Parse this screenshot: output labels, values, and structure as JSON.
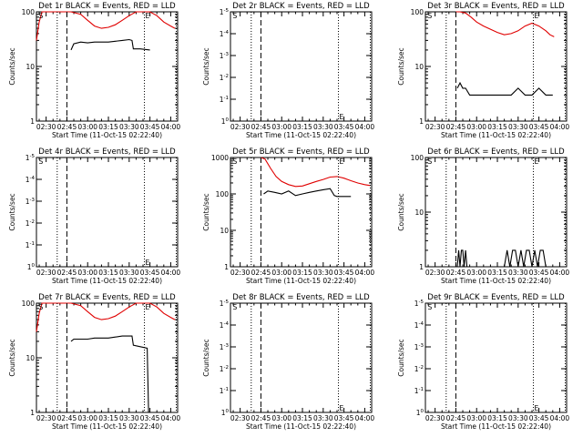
{
  "colors": {
    "events": "#000000",
    "lld": "#e00000",
    "axis": "#000000"
  },
  "chart_data": [
    {
      "type": "line",
      "title": "Det 1r BLACK = Events, RED = LLD",
      "xlabel": "Start Time (11-Oct-15 02:22:40)",
      "ylabel": "Counts/sec",
      "yscale": "log",
      "ylim": [
        1,
        100
      ],
      "yticks": [
        {
          "v": 1,
          "t": "1"
        },
        {
          "v": 10,
          "t": "10"
        },
        {
          "v": 100,
          "t": "100"
        }
      ],
      "xlim": [
        "02:23",
        "04:05"
      ],
      "xticks": [
        "02:30",
        "02:45",
        "03:00",
        "03:15",
        "03:30",
        "03:45",
        "04:00"
      ],
      "markers": [
        {
          "x": "02:24",
          "text": "S",
          "line": "none"
        },
        {
          "x": "02:38",
          "text": "",
          "line": "dotted"
        },
        {
          "x": "02:45",
          "text": "",
          "line": "dashed"
        },
        {
          "x": "03:41",
          "text": "E",
          "line": "dotted"
        },
        {
          "x": "04:04",
          "text": "",
          "line": "dotted"
        }
      ],
      "series": [
        {
          "name": "LLD",
          "color": "red",
          "x": [
            "02:23",
            "02:25",
            "02:27",
            "02:30",
            "02:33",
            "02:40",
            "02:48",
            "02:55",
            "03:00",
            "03:05",
            "03:10",
            "03:15",
            "03:20",
            "03:25",
            "03:30",
            "03:35",
            "03:40",
            "03:45",
            "03:50",
            "03:55",
            "04:00",
            "04:03"
          ],
          "y": [
            30,
            65,
            100,
            100,
            100,
            100,
            100,
            90,
            70,
            55,
            50,
            52,
            58,
            70,
            85,
            100,
            110,
            100,
            85,
            65,
            55,
            50
          ]
        },
        {
          "name": "Events",
          "color": "black",
          "x": [
            "02:48",
            "02:50",
            "02:55",
            "03:00",
            "03:05",
            "03:10",
            "03:15",
            "03:20",
            "03:25",
            "03:30",
            "03:32",
            "03:33",
            "03:38",
            "03:45"
          ],
          "y": [
            20,
            26,
            28,
            27,
            28,
            28,
            28,
            29,
            30,
            31,
            30,
            21,
            21,
            20
          ]
        }
      ]
    },
    {
      "type": "line",
      "title": "Det 2r BLACK = Events, RED = LLD",
      "xlabel": "Start Time (11-Oct-15 02:22:40)",
      "ylabel": "Counts/sec",
      "yscale": "log",
      "ylim": [
        1,
        1.00005
      ],
      "yticks": [
        {
          "v": 0,
          "t": "1"
        },
        {
          "v": 0.2,
          "t": "1"
        },
        {
          "v": 0.4,
          "t": "1"
        },
        {
          "v": 0.6,
          "t": "1"
        },
        {
          "v": 0.8,
          "t": "1"
        },
        {
          "v": 1,
          "t": "1"
        }
      ],
      "ytick_sup": [
        "0",
        "-1",
        "-2",
        "-3",
        "-4",
        "-5"
      ],
      "xlim": [
        "02:23",
        "04:05"
      ],
      "xticks": [
        "02:30",
        "02:45",
        "03:00",
        "03:15",
        "03:30",
        "03:45",
        "04:00"
      ],
      "markers": [
        {
          "x": "02:24",
          "text": "S",
          "line": "none"
        },
        {
          "x": "02:38",
          "text": "",
          "line": "dotted"
        },
        {
          "x": "02:45",
          "text": "",
          "line": "dashed"
        },
        {
          "x": "03:41",
          "text": "E",
          "line": "dotted"
        },
        {
          "x": "04:04",
          "text": "",
          "line": "dotted"
        }
      ],
      "series": []
    },
    {
      "type": "line",
      "title": "Det 3r BLACK = Events, RED = LLD",
      "xlabel": "Start Time (11-Oct-15 02:22:40)",
      "ylabel": "Counts/sec",
      "yscale": "log",
      "ylim": [
        1,
        100
      ],
      "yticks": [
        {
          "v": 1,
          "t": "1"
        },
        {
          "v": 10,
          "t": "10"
        },
        {
          "v": 100,
          "t": "100"
        }
      ],
      "xlim": [
        "02:23",
        "04:05"
      ],
      "xticks": [
        "02:30",
        "02:45",
        "03:00",
        "03:15",
        "03:30",
        "03:45",
        "04:00"
      ],
      "markers": [
        {
          "x": "02:24",
          "text": "S",
          "line": "none"
        },
        {
          "x": "02:38",
          "text": "",
          "line": "dotted"
        },
        {
          "x": "02:45",
          "text": "",
          "line": "dashed"
        },
        {
          "x": "03:41",
          "text": "E",
          "line": "dotted"
        },
        {
          "x": "04:04",
          "text": "",
          "line": "dotted"
        }
      ],
      "series": [
        {
          "name": "LLD",
          "color": "red",
          "x": [
            "02:45",
            "02:48",
            "02:52",
            "02:56",
            "03:00",
            "03:05",
            "03:10",
            "03:15",
            "03:20",
            "03:25",
            "03:30",
            "03:35",
            "03:40",
            "03:45",
            "03:50",
            "03:53",
            "03:56"
          ],
          "y": [
            100,
            100,
            95,
            80,
            65,
            55,
            48,
            42,
            38,
            40,
            45,
            55,
            62,
            55,
            45,
            38,
            35
          ]
        },
        {
          "name": "Events",
          "color": "black",
          "x": [
            "02:46",
            "02:48",
            "02:50",
            "02:52",
            "02:55",
            "03:00",
            "03:05",
            "03:10",
            "03:15",
            "03:20",
            "03:25",
            "03:30",
            "03:35",
            "03:40",
            "03:45",
            "03:50",
            "03:55"
          ],
          "y": [
            4,
            5,
            4,
            4,
            3,
            3,
            3,
            3,
            3,
            3,
            3,
            4,
            3,
            3,
            4,
            3,
            3
          ]
        }
      ]
    },
    {
      "type": "line",
      "title": "Det 4r BLACK = Events, RED = LLD",
      "xlabel": "Start Time (11-Oct-15 02:22:40)",
      "ylabel": "Counts/sec",
      "yscale": "log",
      "ylim": [
        1,
        1.00005
      ],
      "yticks": [
        {
          "v": 0,
          "t": "1"
        },
        {
          "v": 0.2,
          "t": "1"
        },
        {
          "v": 0.4,
          "t": "1"
        },
        {
          "v": 0.6,
          "t": "1"
        },
        {
          "v": 0.8,
          "t": "1"
        },
        {
          "v": 1,
          "t": "1"
        }
      ],
      "ytick_sup": [
        "0",
        "-1",
        "-2",
        "-3",
        "-4",
        "-5"
      ],
      "xlim": [
        "02:23",
        "04:05"
      ],
      "xticks": [
        "02:30",
        "02:45",
        "03:00",
        "03:15",
        "03:30",
        "03:45",
        "04:00"
      ],
      "markers": [
        {
          "x": "02:24",
          "text": "S",
          "line": "none"
        },
        {
          "x": "02:38",
          "text": "",
          "line": "dotted"
        },
        {
          "x": "02:45",
          "text": "",
          "line": "dashed"
        },
        {
          "x": "03:41",
          "text": "E",
          "line": "dotted"
        },
        {
          "x": "04:04",
          "text": "",
          "line": "dotted"
        }
      ],
      "series": []
    },
    {
      "type": "line",
      "title": "Det 5r BLACK = Events, RED = LLD",
      "xlabel": "Start Time (11-Oct-15 02:22:40)",
      "ylabel": "Counts/sec",
      "yscale": "log",
      "ylim": [
        1,
        1000
      ],
      "yticks": [
        {
          "v": 1,
          "t": "1"
        },
        {
          "v": 10,
          "t": "10"
        },
        {
          "v": 100,
          "t": "100"
        },
        {
          "v": 1000,
          "t": "1000"
        }
      ],
      "xlim": [
        "02:23",
        "04:05"
      ],
      "xticks": [
        "02:30",
        "02:45",
        "03:00",
        "03:15",
        "03:30",
        "03:45",
        "04:00"
      ],
      "markers": [
        {
          "x": "02:24",
          "text": "S",
          "line": "none"
        },
        {
          "x": "02:38",
          "text": "",
          "line": "dotted"
        },
        {
          "x": "02:45",
          "text": "",
          "line": "dashed"
        },
        {
          "x": "03:41",
          "text": "E",
          "line": "dotted"
        },
        {
          "x": "04:04",
          "text": "",
          "line": "dotted"
        }
      ],
      "series": [
        {
          "name": "LLD",
          "color": "red",
          "x": [
            "02:45",
            "02:48",
            "02:52",
            "02:56",
            "03:00",
            "03:05",
            "03:10",
            "03:15",
            "03:20",
            "03:25",
            "03:30",
            "03:35",
            "03:40",
            "03:45",
            "03:50",
            "03:55",
            "04:00",
            "04:04"
          ],
          "y": [
            1000,
            900,
            500,
            300,
            220,
            180,
            160,
            165,
            190,
            220,
            250,
            290,
            300,
            270,
            230,
            200,
            180,
            170
          ]
        },
        {
          "name": "Events",
          "color": "black",
          "x": [
            "02:47",
            "02:50",
            "02:55",
            "03:00",
            "03:05",
            "03:10",
            "03:15",
            "03:20",
            "03:25",
            "03:30",
            "03:35",
            "03:38",
            "03:40",
            "03:45",
            "03:50"
          ],
          "y": [
            100,
            120,
            110,
            100,
            120,
            90,
            100,
            110,
            120,
            130,
            140,
            90,
            85,
            85,
            85
          ]
        }
      ]
    },
    {
      "type": "line",
      "title": "Det 6r BLACK = Events, RED = LLD",
      "xlabel": "Start Time (11-Oct-15 02:22:40)",
      "ylabel": "Counts/sec",
      "yscale": "log",
      "ylim": [
        1,
        100
      ],
      "yticks": [
        {
          "v": 1,
          "t": "1"
        },
        {
          "v": 10,
          "t": "10"
        },
        {
          "v": 100,
          "t": "100"
        }
      ],
      "xlim": [
        "02:23",
        "04:05"
      ],
      "xticks": [
        "02:30",
        "02:45",
        "03:00",
        "03:15",
        "03:30",
        "03:45",
        "04:00"
      ],
      "markers": [
        {
          "x": "02:24",
          "text": "S",
          "line": "none"
        },
        {
          "x": "02:38",
          "text": "",
          "line": "dotted"
        },
        {
          "x": "02:45",
          "text": "",
          "line": "dashed"
        },
        {
          "x": "03:41",
          "text": "E",
          "line": "dotted"
        },
        {
          "x": "04:04",
          "text": "",
          "line": "dotted"
        }
      ],
      "series": [
        {
          "name": "Events",
          "color": "black",
          "x": [
            "02:46",
            "02:47",
            "02:48",
            "02:49",
            "02:50",
            "02:51",
            "02:52",
            "02:53",
            "03:20",
            "03:22",
            "03:24",
            "03:26",
            "03:28",
            "03:30",
            "03:32",
            "03:34",
            "03:36",
            "03:38",
            "03:40",
            "03:42",
            "03:44",
            "03:46",
            "03:48",
            "03:50"
          ],
          "y": [
            1,
            2,
            1,
            2,
            2,
            1,
            2,
            1,
            1,
            2,
            1,
            2,
            2,
            1,
            2,
            1,
            2,
            2,
            1,
            2,
            1,
            2,
            2,
            1
          ]
        }
      ]
    },
    {
      "type": "line",
      "title": "Det 7r BLACK = Events, RED = LLD",
      "xlabel": "Start Time (11-Oct-15 02:22:40)",
      "ylabel": "Counts/sec",
      "yscale": "log",
      "ylim": [
        1,
        100
      ],
      "yticks": [
        {
          "v": 1,
          "t": "1"
        },
        {
          "v": 10,
          "t": "10"
        },
        {
          "v": 100,
          "t": "100"
        }
      ],
      "xlim": [
        "02:23",
        "04:05"
      ],
      "xticks": [
        "02:30",
        "02:45",
        "03:00",
        "03:15",
        "03:30",
        "03:45",
        "04:00"
      ],
      "markers": [
        {
          "x": "02:24",
          "text": "S",
          "line": "none"
        },
        {
          "x": "02:38",
          "text": "",
          "line": "dotted"
        },
        {
          "x": "02:45",
          "text": "",
          "line": "dashed"
        },
        {
          "x": "03:41",
          "text": "E",
          "line": "dotted"
        },
        {
          "x": "04:04",
          "text": "",
          "line": "dotted"
        }
      ],
      "series": [
        {
          "name": "LLD",
          "color": "red",
          "x": [
            "02:23",
            "02:25",
            "02:27",
            "02:30",
            "02:33",
            "02:40",
            "02:48",
            "02:55",
            "03:00",
            "03:05",
            "03:10",
            "03:15",
            "03:20",
            "03:25",
            "03:30",
            "03:35",
            "03:40",
            "03:45",
            "03:50",
            "03:55",
            "04:00",
            "04:03"
          ],
          "y": [
            30,
            65,
            100,
            100,
            100,
            100,
            100,
            90,
            70,
            55,
            50,
            52,
            58,
            70,
            85,
            100,
            110,
            100,
            85,
            65,
            55,
            50
          ]
        },
        {
          "name": "Events",
          "color": "black",
          "x": [
            "02:48",
            "02:50",
            "02:55",
            "03:00",
            "03:05",
            "03:10",
            "03:15",
            "03:20",
            "03:25",
            "03:30",
            "03:32",
            "03:33",
            "03:38",
            "03:43",
            "03:44"
          ],
          "y": [
            20,
            22,
            22,
            22,
            23,
            23,
            23,
            24,
            25,
            25,
            25,
            17,
            16,
            15,
            1
          ]
        }
      ]
    },
    {
      "type": "line",
      "title": "Det 8r BLACK = Events, RED = LLD",
      "xlabel": "Start Time (11-Oct-15 02:22:40)",
      "ylabel": "Counts/sec",
      "yscale": "log",
      "ylim": [
        1,
        1.00005
      ],
      "yticks": [
        {
          "v": 0,
          "t": "1"
        },
        {
          "v": 0.2,
          "t": "1"
        },
        {
          "v": 0.4,
          "t": "1"
        },
        {
          "v": 0.6,
          "t": "1"
        },
        {
          "v": 0.8,
          "t": "1"
        },
        {
          "v": 1,
          "t": "1"
        }
      ],
      "ytick_sup": [
        "0",
        "-1",
        "-2",
        "-3",
        "-4",
        "-5"
      ],
      "xlim": [
        "02:23",
        "04:05"
      ],
      "xticks": [
        "02:30",
        "02:45",
        "03:00",
        "03:15",
        "03:30",
        "03:45",
        "04:00"
      ],
      "markers": [
        {
          "x": "02:24",
          "text": "S",
          "line": "none"
        },
        {
          "x": "02:38",
          "text": "",
          "line": "dotted"
        },
        {
          "x": "02:45",
          "text": "",
          "line": "dashed"
        },
        {
          "x": "03:41",
          "text": "E",
          "line": "dotted"
        },
        {
          "x": "04:04",
          "text": "",
          "line": "dotted"
        }
      ],
      "series": []
    },
    {
      "type": "line",
      "title": "Det 9r BLACK = Events, RED = LLD",
      "xlabel": "Start Time (11-Oct-15 02:22:40)",
      "ylabel": "Counts/sec",
      "yscale": "log",
      "ylim": [
        1,
        1.00005
      ],
      "yticks": [
        {
          "v": 0,
          "t": "1"
        },
        {
          "v": 0.2,
          "t": "1"
        },
        {
          "v": 0.4,
          "t": "1"
        },
        {
          "v": 0.6,
          "t": "1"
        },
        {
          "v": 0.8,
          "t": "1"
        },
        {
          "v": 1,
          "t": "1"
        }
      ],
      "ytick_sup": [
        "0",
        "-1",
        "-2",
        "-3",
        "-4",
        "-5"
      ],
      "xlim": [
        "02:23",
        "04:05"
      ],
      "xticks": [
        "02:30",
        "02:45",
        "03:00",
        "03:15",
        "03:30",
        "03:45",
        "04:00"
      ],
      "markers": [
        {
          "x": "02:24",
          "text": "S",
          "line": "none"
        },
        {
          "x": "02:38",
          "text": "",
          "line": "dotted"
        },
        {
          "x": "02:45",
          "text": "",
          "line": "dashed"
        },
        {
          "x": "03:41",
          "text": "E",
          "line": "dotted"
        },
        {
          "x": "04:04",
          "text": "",
          "line": "dotted"
        }
      ],
      "series": []
    }
  ]
}
